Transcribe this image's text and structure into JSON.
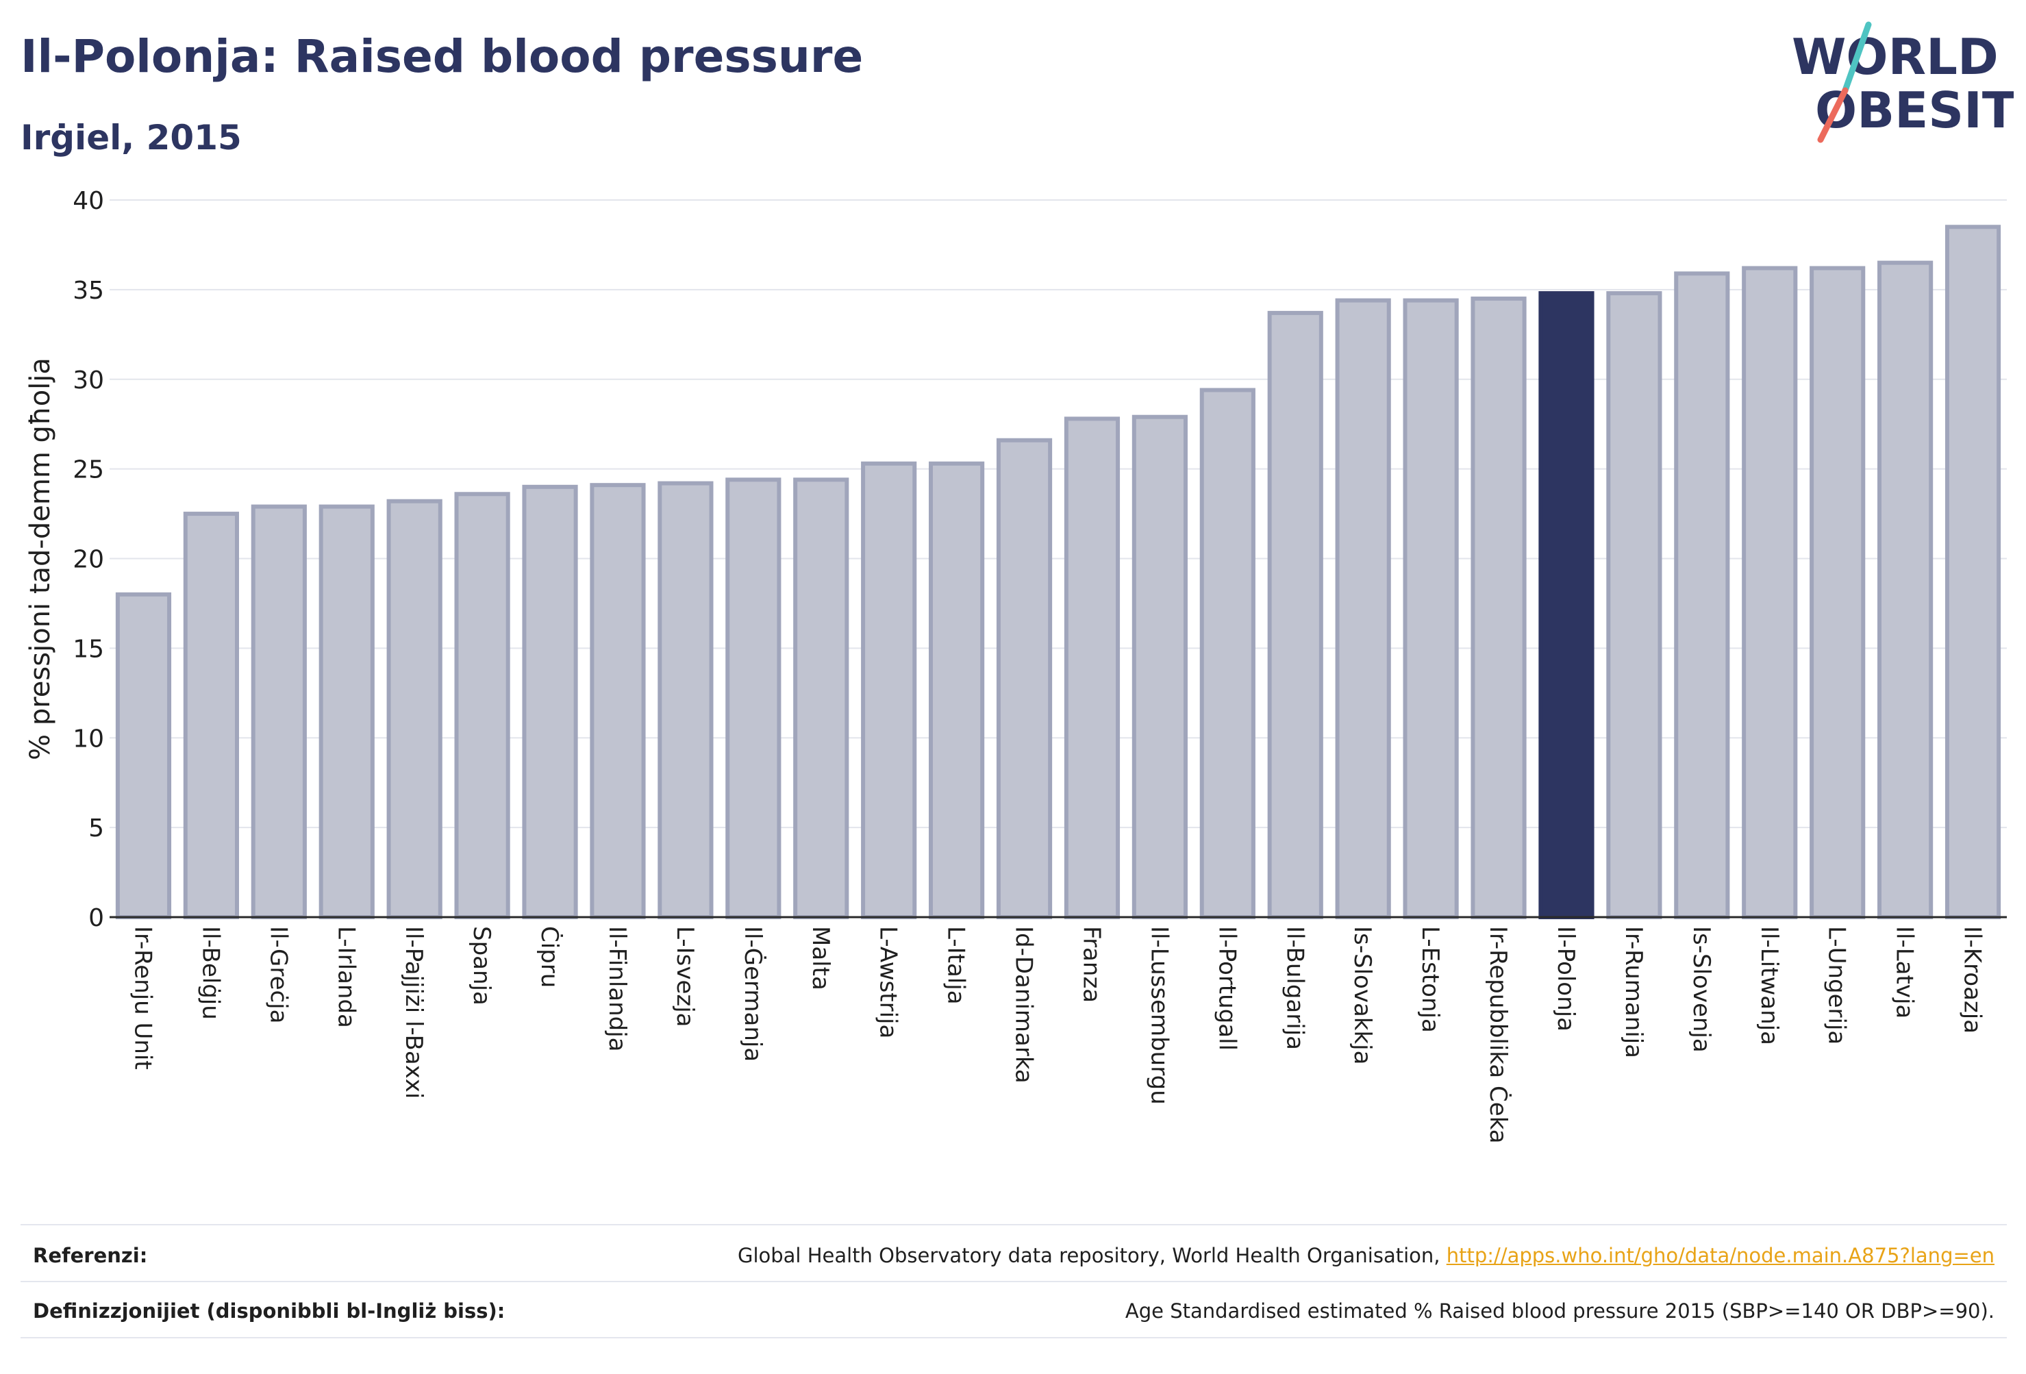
{
  "title": "Il-Polonja: Raised blood pressure",
  "subtitle": "Irġiel, 2015",
  "logo": {
    "line1": "WORLD",
    "line2": "OBESITY",
    "slash_colors": [
      "#4fc4c2",
      "#ec6a5c"
    ]
  },
  "colors": {
    "bar": "#c0c3d0",
    "bar_stroke": "#a0a5bb",
    "highlight": "#2d3561",
    "text": "#2d3561"
  },
  "chart_data": {
    "type": "bar",
    "title": "Il-Polonja: Raised blood pressure",
    "subtitle": "Irġiel, 2015",
    "xlabel": "",
    "ylabel": "% pressjoni tad-demm għolja",
    "ylim": [
      0,
      40
    ],
    "yticks": [
      0,
      5,
      10,
      15,
      20,
      25,
      30,
      35,
      40
    ],
    "grid": true,
    "highlight": "Il-Polonja",
    "categories": [
      "Ir-Renju Unit",
      "Il-Belġju",
      "Il-Greċja",
      "L-Irlanda",
      "Il-Pajjiżi l-Baxxi",
      "Spanja",
      "Ċipru",
      "Il-Finlandja",
      "L-Isvezja",
      "Il-Ġermanja",
      "Malta",
      "L-Awstrija",
      "L-Italja",
      "Id-Danimarka",
      "Franza",
      "Il-Lussemburgu",
      "Il-Portugall",
      "Il-Bulgarija",
      "Is-Slovakkja",
      "L-Estonja",
      "Ir-Repubblika Ċeka",
      "Il-Polonja",
      "Ir-Rumanija",
      "Is-Slovenja",
      "Il-Litwanja",
      "L-Ungerija",
      "Il-Latvja",
      "Il-Kroazja"
    ],
    "values": [
      18.0,
      22.5,
      22.9,
      22.9,
      23.2,
      23.6,
      24.0,
      24.1,
      24.2,
      24.4,
      24.4,
      25.3,
      25.3,
      26.6,
      27.8,
      27.9,
      29.4,
      33.7,
      34.4,
      34.4,
      34.5,
      34.8,
      34.8,
      35.9,
      36.2,
      36.2,
      36.5,
      38.5
    ]
  },
  "footer": {
    "references_label": "Referenzi:",
    "references_text": "Global Health Observatory data repository, World Health Organisation, ",
    "references_link": "http://apps.who.int/gho/data/node.main.A875?lang=en",
    "definitions_label": "Definizzjonijiet (disponibbli bl-Ingliż biss):",
    "definitions_text": "Age Standardised estimated % Raised blood pressure 2015 (SBP>=140 OR DBP>=90)."
  }
}
